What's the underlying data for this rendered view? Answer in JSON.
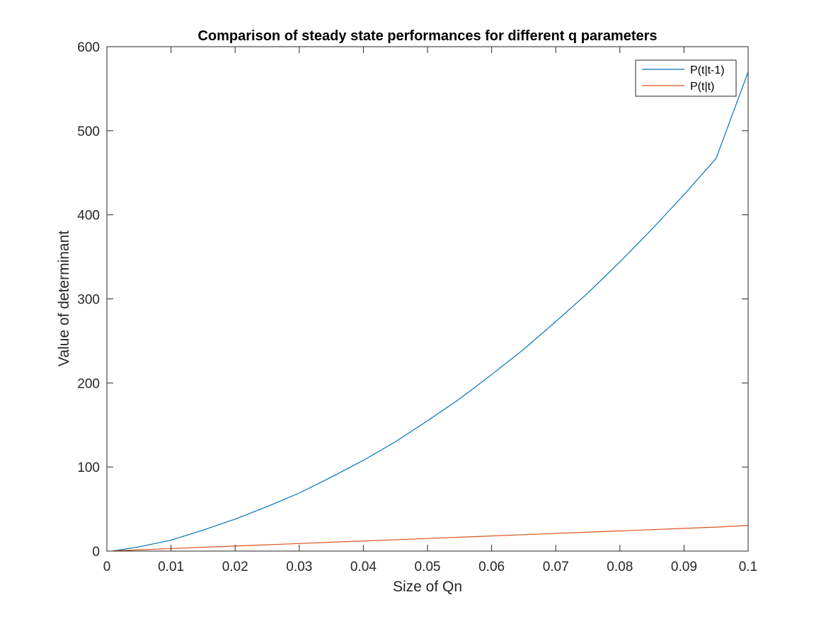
{
  "chart_data": {
    "type": "line",
    "title": "Comparison of steady state performances for different q parameters",
    "xlabel": "Size of Qn",
    "ylabel": "Value of determinant",
    "xlim": [
      0,
      0.1
    ],
    "ylim": [
      0,
      600
    ],
    "xticks": [
      0,
      0.01,
      0.02,
      0.03,
      0.04,
      0.05,
      0.06,
      0.07,
      0.08,
      0.09,
      0.1
    ],
    "xtick_labels": [
      "0",
      "0.01",
      "0.02",
      "0.03",
      "0.04",
      "0.05",
      "0.06",
      "0.07",
      "0.08",
      "0.09",
      "0.1"
    ],
    "yticks": [
      0,
      100,
      200,
      300,
      400,
      500,
      600
    ],
    "ytick_labels": [
      "0",
      "100",
      "200",
      "300",
      "400",
      "500",
      "600"
    ],
    "grid": false,
    "legend_position": "top-right",
    "x": [
      0.001,
      0.005,
      0.01,
      0.015,
      0.02,
      0.025,
      0.03,
      0.035,
      0.04,
      0.045,
      0.05,
      0.055,
      0.06,
      0.065,
      0.07,
      0.075,
      0.08,
      0.085,
      0.09,
      0.095,
      0.1
    ],
    "series": [
      {
        "name": "P(t|t-1)",
        "color": "#0072BD",
        "values": [
          0.2,
          5,
          13,
          25,
          38,
          53,
          69,
          88,
          108,
          130,
          155,
          181,
          210,
          240,
          273,
          307,
          344,
          383,
          424,
          467,
          570
        ]
      },
      {
        "name": "P(t|t)",
        "color": "#D95319",
        "values": [
          0.3,
          1.5,
          3.0,
          4.5,
          6.0,
          7.5,
          9.0,
          10.5,
          12.0,
          13.5,
          15.0,
          16.5,
          18.0,
          19.5,
          21.0,
          22.5,
          24.0,
          25.5,
          27.0,
          28.5,
          30.5
        ]
      }
    ]
  }
}
